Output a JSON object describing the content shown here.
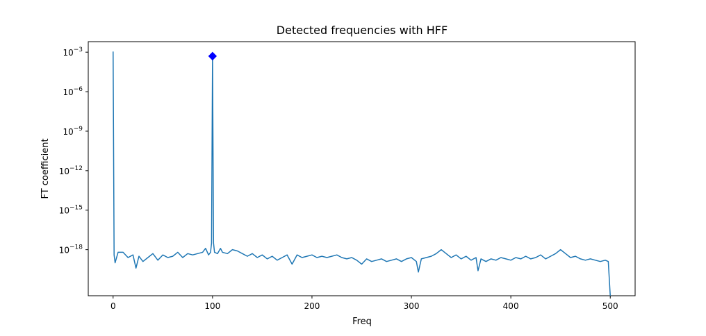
{
  "chart_data": {
    "type": "line",
    "title": "Detected frequencies with HFF",
    "xlabel": "Freq",
    "ylabel": "FT coefficient",
    "xlim": [
      -25,
      525
    ],
    "ylim_log10": [
      -21.5,
      -2.2
    ],
    "yscale": "log",
    "grid": false,
    "x_ticks": [
      0,
      100,
      200,
      300,
      400,
      500
    ],
    "x_tick_labels": [
      "0",
      "100",
      "200",
      "300",
      "400",
      "500"
    ],
    "y_ticks_log10": [
      -3,
      -6,
      -9,
      -12,
      -15,
      -18
    ],
    "y_tick_labels": [
      {
        "base": "10",
        "exp": "−3"
      },
      {
        "base": "10",
        "exp": "−6"
      },
      {
        "base": "10",
        "exp": "−9"
      },
      {
        "base": "10",
        "exp": "−12"
      },
      {
        "base": "10",
        "exp": "−15"
      },
      {
        "base": "10",
        "exp": "−18"
      }
    ],
    "series": [
      {
        "color": "#1f77b4",
        "sampling": "1 Hz steps from 0 to 500",
        "points_log10": [
          [
            0,
            -2.95
          ],
          [
            1,
            -18.4
          ],
          [
            2,
            -19.0
          ],
          [
            5,
            -18.2
          ],
          [
            10,
            -18.2
          ],
          [
            15,
            -18.6
          ],
          [
            20,
            -18.4
          ],
          [
            23,
            -19.4
          ],
          [
            26,
            -18.5
          ],
          [
            30,
            -18.9
          ],
          [
            35,
            -18.6
          ],
          [
            40,
            -18.3
          ],
          [
            45,
            -18.8
          ],
          [
            50,
            -18.4
          ],
          [
            55,
            -18.6
          ],
          [
            60,
            -18.5
          ],
          [
            65,
            -18.2
          ],
          [
            70,
            -18.6
          ],
          [
            75,
            -18.3
          ],
          [
            80,
            -18.4
          ],
          [
            85,
            -18.3
          ],
          [
            90,
            -18.2
          ],
          [
            93,
            -17.9
          ],
          [
            96,
            -18.4
          ],
          [
            98,
            -18.2
          ],
          [
            99,
            -17.5
          ],
          [
            100,
            -3.3
          ],
          [
            101,
            -17.5
          ],
          [
            102,
            -18.2
          ],
          [
            105,
            -18.3
          ],
          [
            108,
            -17.9
          ],
          [
            110,
            -18.2
          ],
          [
            115,
            -18.3
          ],
          [
            120,
            -18.0
          ],
          [
            125,
            -18.1
          ],
          [
            130,
            -18.3
          ],
          [
            135,
            -18.5
          ],
          [
            140,
            -18.3
          ],
          [
            145,
            -18.6
          ],
          [
            150,
            -18.4
          ],
          [
            155,
            -18.7
          ],
          [
            160,
            -18.5
          ],
          [
            165,
            -18.8
          ],
          [
            170,
            -18.6
          ],
          [
            175,
            -18.4
          ],
          [
            180,
            -19.1
          ],
          [
            185,
            -18.4
          ],
          [
            190,
            -18.6
          ],
          [
            195,
            -18.5
          ],
          [
            200,
            -18.4
          ],
          [
            205,
            -18.6
          ],
          [
            210,
            -18.5
          ],
          [
            215,
            -18.6
          ],
          [
            220,
            -18.5
          ],
          [
            225,
            -18.4
          ],
          [
            230,
            -18.6
          ],
          [
            235,
            -18.7
          ],
          [
            240,
            -18.6
          ],
          [
            245,
            -18.8
          ],
          [
            250,
            -19.1
          ],
          [
            255,
            -18.7
          ],
          [
            260,
            -18.9
          ],
          [
            265,
            -18.8
          ],
          [
            270,
            -18.7
          ],
          [
            275,
            -18.9
          ],
          [
            280,
            -18.8
          ],
          [
            285,
            -18.7
          ],
          [
            290,
            -18.9
          ],
          [
            295,
            -18.7
          ],
          [
            300,
            -18.6
          ],
          [
            305,
            -18.9
          ],
          [
            307,
            -19.7
          ],
          [
            310,
            -18.7
          ],
          [
            315,
            -18.6
          ],
          [
            320,
            -18.5
          ],
          [
            325,
            -18.3
          ],
          [
            330,
            -18.0
          ],
          [
            335,
            -18.3
          ],
          [
            340,
            -18.6
          ],
          [
            345,
            -18.4
          ],
          [
            350,
            -18.7
          ],
          [
            355,
            -18.5
          ],
          [
            360,
            -18.8
          ],
          [
            365,
            -18.6
          ],
          [
            367,
            -19.6
          ],
          [
            370,
            -18.7
          ],
          [
            375,
            -18.9
          ],
          [
            380,
            -18.7
          ],
          [
            385,
            -18.8
          ],
          [
            390,
            -18.6
          ],
          [
            395,
            -18.7
          ],
          [
            400,
            -18.8
          ],
          [
            405,
            -18.6
          ],
          [
            410,
            -18.7
          ],
          [
            415,
            -18.5
          ],
          [
            420,
            -18.7
          ],
          [
            425,
            -18.6
          ],
          [
            430,
            -18.4
          ],
          [
            435,
            -18.7
          ],
          [
            440,
            -18.5
          ],
          [
            445,
            -18.3
          ],
          [
            450,
            -18.0
          ],
          [
            455,
            -18.3
          ],
          [
            460,
            -18.6
          ],
          [
            465,
            -18.5
          ],
          [
            470,
            -18.7
          ],
          [
            475,
            -18.8
          ],
          [
            480,
            -18.7
          ],
          [
            485,
            -18.8
          ],
          [
            490,
            -18.9
          ],
          [
            495,
            -18.8
          ],
          [
            498,
            -18.9
          ],
          [
            500,
            -21.5
          ]
        ]
      },
      {
        "type": "marker",
        "color": "#0000ff",
        "shape": "diamond",
        "points_log10": [
          [
            100,
            -3.3
          ]
        ]
      }
    ]
  }
}
